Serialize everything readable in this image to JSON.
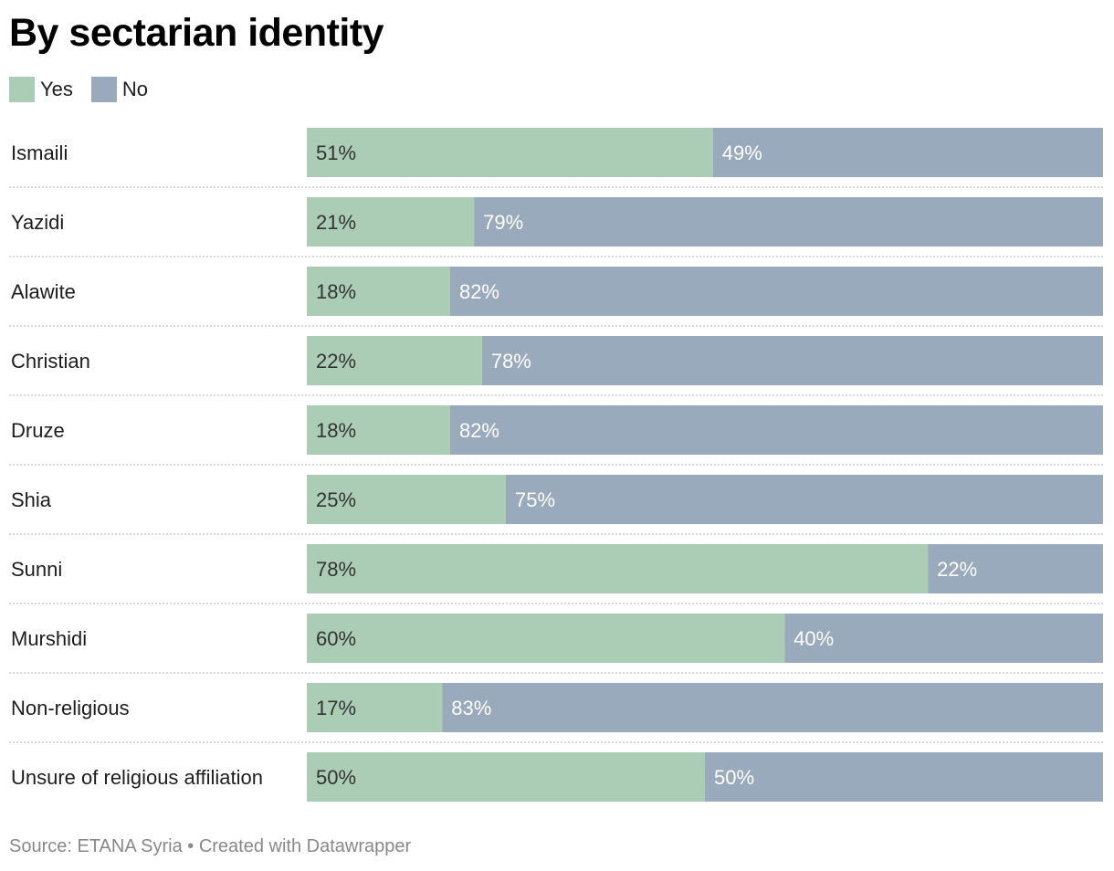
{
  "chart_data": {
    "type": "bar",
    "stacked": true,
    "orientation": "horizontal",
    "title": "By sectarian identity",
    "categories": [
      "Ismaili",
      "Yazidi",
      "Alawite",
      "Christian",
      "Druze",
      "Shia",
      "Sunni",
      "Murshidi",
      "Non-religious",
      "Unsure of religious affiliation"
    ],
    "series": [
      {
        "name": "Yes",
        "color": "#abcdb5",
        "values": [
          51,
          21,
          18,
          22,
          18,
          25,
          78,
          60,
          17,
          50
        ]
      },
      {
        "name": "No",
        "color": "#98aabb",
        "values": [
          49,
          79,
          82,
          78,
          82,
          75,
          22,
          40,
          83,
          50
        ]
      }
    ],
    "value_suffix": "%",
    "xlim": [
      0,
      100
    ],
    "legend_position": "top-left"
  },
  "footer": {
    "text": "Source: ETANA Syria • Created with Datawrapper"
  }
}
